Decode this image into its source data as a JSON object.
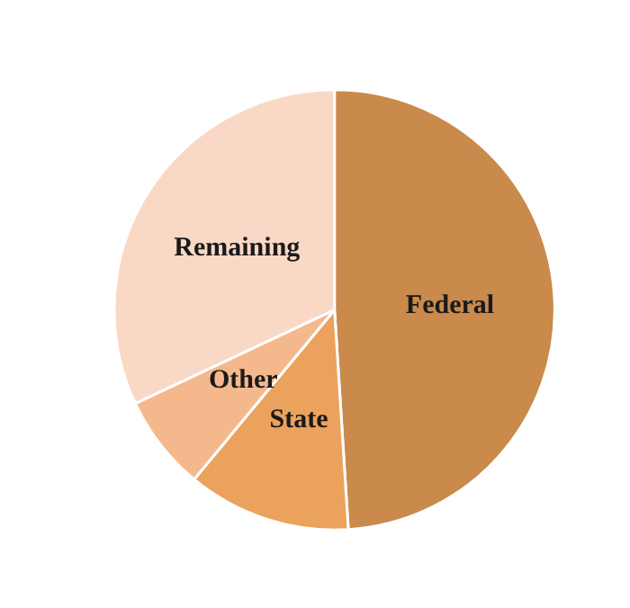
{
  "chart_data": {
    "type": "pie",
    "categories": [
      "Federal",
      "State",
      "Other",
      "Remaining"
    ],
    "values": [
      49,
      12,
      7,
      32
    ],
    "colors": [
      "#c98a4b",
      "#eba25c",
      "#f5b88d",
      "#fad8c6"
    ],
    "legend": false
  }
}
